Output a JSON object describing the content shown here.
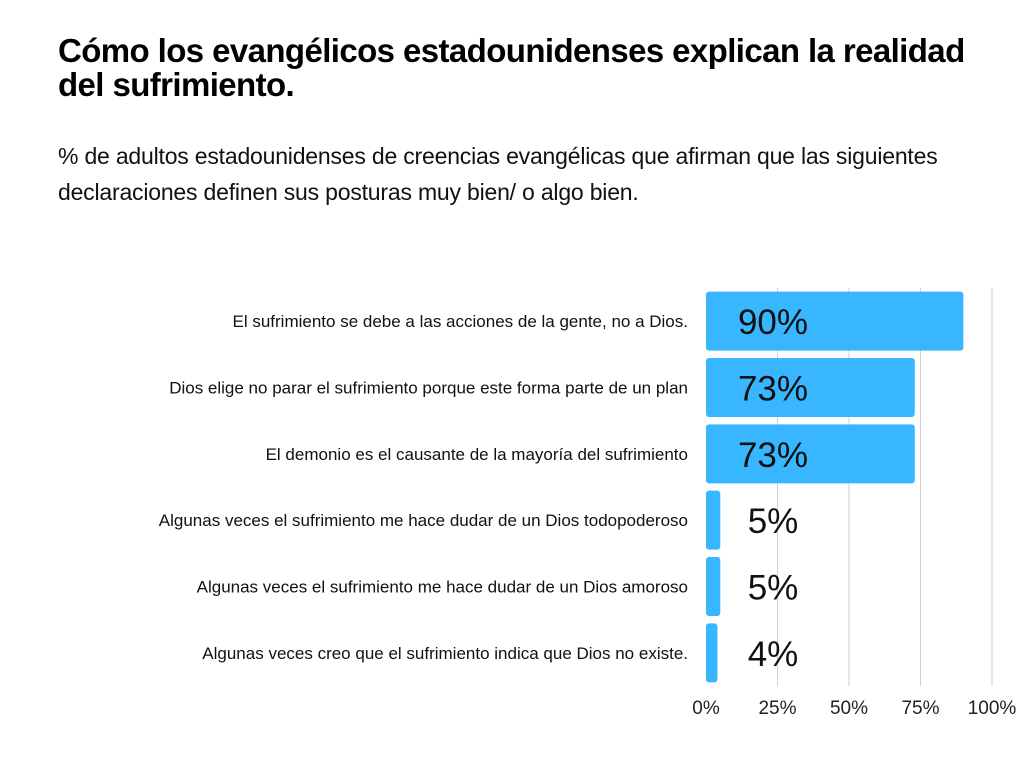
{
  "chart_data": {
    "type": "bar",
    "orientation": "horizontal",
    "title": "Cómo los evangélicos estadounidenses explican la realidad del sufrimiento.",
    "subtitle": "% de adultos estadounidenses de creencias evangélicas que afirman que las siguientes declaraciones definen sus posturas muy bien/ o algo bien.",
    "categories": [
      "El sufrimiento se debe a las acciones de la gente, no a Dios.",
      "Dios elige no parar el sufrimiento porque este forma parte de un plan",
      "El demonio es el causante de la mayoría del sufrimiento",
      "Algunas veces el sufrimiento me hace dudar de un Dios todopoderoso",
      "Algunas veces el sufrimiento me hace dudar de un Dios amoroso",
      "Algunas veces creo que el sufrimiento indica que Dios no existe."
    ],
    "values": [
      90,
      73,
      73,
      5,
      5,
      4
    ],
    "value_labels": [
      "90%",
      "73%",
      "73%",
      "5%",
      "5%",
      "4%"
    ],
    "xlabel": "",
    "ylabel": "",
    "xlim": [
      0,
      100
    ],
    "xticks": [
      0,
      25,
      50,
      75,
      100
    ],
    "xtick_labels": [
      "0%",
      "25%",
      "50%",
      "75%",
      "100%"
    ],
    "grid": true,
    "legend": "none",
    "bar_color": "#38b6ff"
  }
}
